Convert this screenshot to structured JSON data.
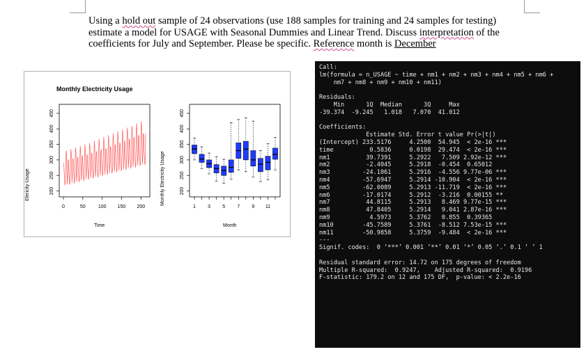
{
  "question": {
    "part1": "Using a ",
    "part2": "hold out",
    "part3": " sample of 24 observations (use 188 samples for training and 24 samples for testing)",
    "line2a": "estimate a model for USAGE with Seasonal Dummies and Linear Trend. Discuss ",
    "line2b": "interpretation",
    "line2c": " of the",
    "line3a": "coefficients for July and September. Please be specific. ",
    "line3b": "Reference",
    "line3c": " month is ",
    "line3d": "December"
  },
  "figure": {
    "title": "Monthly Electricity Usage",
    "left_xlabel": "Time",
    "left_ylabel": "Elericity Usage",
    "right_xlabel": "Month",
    "right_ylabel": "Monthly Electricity Usage",
    "yticks": [
      "200",
      "250",
      "300",
      "350",
      "400",
      "450"
    ],
    "left_xticks": [
      "0",
      "50",
      "100",
      "150",
      "200"
    ],
    "right_xticks": [
      "1",
      "3",
      "5",
      "7",
      "9",
      "11"
    ],
    "line_color": "#ff5a5a",
    "box_color": "#1f3cff"
  },
  "chart_data": [
    {
      "type": "line",
      "title": "Monthly Electricity Usage",
      "xlabel": "Time",
      "ylabel": "Elericity Usage",
      "xlim": [
        0,
        212
      ],
      "ylim": [
        190,
        470
      ],
      "series": [
        {
          "x_start": 1,
          "x_end": 212,
          "values": [
            290,
            258,
            240,
            218,
            225,
            292,
            330,
            318,
            262,
            222,
            245,
            300,
            298,
            262,
            242,
            220,
            228,
            296,
            335,
            322,
            266,
            226,
            250,
            305,
            302,
            266,
            246,
            224,
            232,
            300,
            340,
            326,
            270,
            230,
            254,
            310,
            306,
            270,
            250,
            228,
            236,
            305,
            345,
            330,
            274,
            234,
            258,
            314,
            310,
            274,
            254,
            232,
            240,
            310,
            350,
            335,
            278,
            238,
            262,
            318,
            315,
            278,
            258,
            236,
            244,
            315,
            355,
            340,
            282,
            242,
            266,
            322,
            320,
            282,
            262,
            240,
            248,
            320,
            362,
            345,
            286,
            246,
            270,
            328,
            325,
            286,
            266,
            244,
            252,
            325,
            368,
            350,
            290,
            250,
            275,
            333,
            330,
            290,
            270,
            248,
            256,
            330,
            374,
            356,
            294,
            254,
            280,
            338,
            335,
            294,
            274,
            252,
            260,
            336,
            380,
            362,
            298,
            258,
            285,
            344,
            340,
            298,
            278,
            256,
            264,
            342,
            386,
            368,
            302,
            262,
            290,
            350,
            346,
            302,
            282,
            260,
            268,
            348,
            392,
            374,
            306,
            266,
            295,
            356,
            352,
            306,
            286,
            264,
            272,
            354,
            398,
            380,
            310,
            270,
            300,
            362,
            358,
            310,
            290,
            268,
            276,
            360,
            404,
            386,
            314,
            274,
            305,
            368,
            364,
            314,
            294,
            272,
            280,
            366,
            410,
            392,
            318,
            278,
            310,
            374,
            370,
            318,
            298,
            276,
            284,
            372,
            418,
            398,
            322,
            282,
            315,
            380,
            376,
            322,
            302,
            280,
            288,
            378,
            425,
            404,
            326,
            286,
            320,
            386,
            382,
            326,
            306,
            284,
            292,
            384
          ]
        }
      ]
    },
    {
      "type": "box",
      "xlabel": "Month",
      "ylabel": "Monthly Electricity Usage",
      "categories": [
        "1",
        "2",
        "3",
        "4",
        "5",
        "6",
        "7",
        "8",
        "9",
        "10",
        "11",
        "12"
      ],
      "ylim": [
        190,
        470
      ],
      "boxes": [
        {
          "min": 300,
          "q1": 320,
          "median": 335,
          "q3": 348,
          "max": 370
        },
        {
          "min": 272,
          "q1": 292,
          "median": 303,
          "q3": 318,
          "max": 342
        },
        {
          "min": 255,
          "q1": 275,
          "median": 288,
          "q3": 300,
          "max": 322
        },
        {
          "min": 232,
          "q1": 258,
          "median": 272,
          "q3": 285,
          "max": 310
        },
        {
          "min": 225,
          "q1": 250,
          "median": 266,
          "q3": 280,
          "max": 302
        },
        {
          "min": 238,
          "q1": 260,
          "median": 276,
          "q3": 300,
          "max": 420
        },
        {
          "min": 268,
          "q1": 305,
          "median": 330,
          "q3": 355,
          "max": 430
        },
        {
          "min": 262,
          "q1": 300,
          "median": 335,
          "q3": 360,
          "max": 435
        },
        {
          "min": 245,
          "q1": 280,
          "median": 300,
          "q3": 330,
          "max": 425
        },
        {
          "min": 230,
          "q1": 262,
          "median": 286,
          "q3": 305,
          "max": 330
        },
        {
          "min": 236,
          "q1": 268,
          "median": 292,
          "q3": 312,
          "max": 352
        },
        {
          "min": 268,
          "q1": 302,
          "median": 318,
          "q3": 338,
          "max": 372
        }
      ]
    }
  ],
  "console": {
    "lines": [
      "Call:",
      "lm(formula = n_USAGE ~ time + nm1 + nm2 + nm3 + nm4 + nm5 + nm6 +",
      "    nm7 + nm8 + nm9 + nm10 + nm11)",
      "",
      "Residuals:",
      "    Min      1Q  Median      3Q     Max",
      "-39.374  -9.245   1.018   7.070  41.012",
      "",
      "Coefficients:",
      "             Estimate Std. Error t value Pr(>|t|)",
      "(Intercept) 233.5176     4.2500  54.945  < 2e-16 ***",
      "time          0.5836     0.0198  29.474  < 2e-16 ***",
      "nm1          39.7391     5.2922   7.509 2.92e-12 ***",
      "nm2          -2.4045     5.2918  -0.454  0.65012",
      "nm3         -24.1061     5.2916  -4.556 9.77e-06 ***",
      "nm4         -57.6947     5.2914 -10.904  < 2e-16 ***",
      "nm5         -62.0089     5.2913 -11.719  < 2e-16 ***",
      "nm6         -17.0174     5.2912  -3.216  0.00155 **",
      "nm7          44.8115     5.2913   8.469 9.77e-15 ***",
      "nm8          47.8405     5.2914   9.041 2.87e-16 ***",
      "nm9           4.5973     5.3762   0.855  0.39365",
      "nm10        -45.7589     5.3761  -8.512 7.53e-15 ***",
      "nm11        -50.9858     5.3759  -9.484  < 2e-16 ***",
      "---",
      "Signif. codes:  0 ‘***’ 0.001 ‘**’ 0.01 ‘*’ 0.05 ‘.’ 0.1 ‘ ’ 1",
      "",
      "Residual standard error: 14.72 on 175 degrees of freedom",
      "Multiple R-squared:  0.9247,    Adjusted R-squared:  0.9196",
      "F-statistic: 179.2 on 12 and 175 DF,  p-value: < 2.2e-16"
    ]
  }
}
